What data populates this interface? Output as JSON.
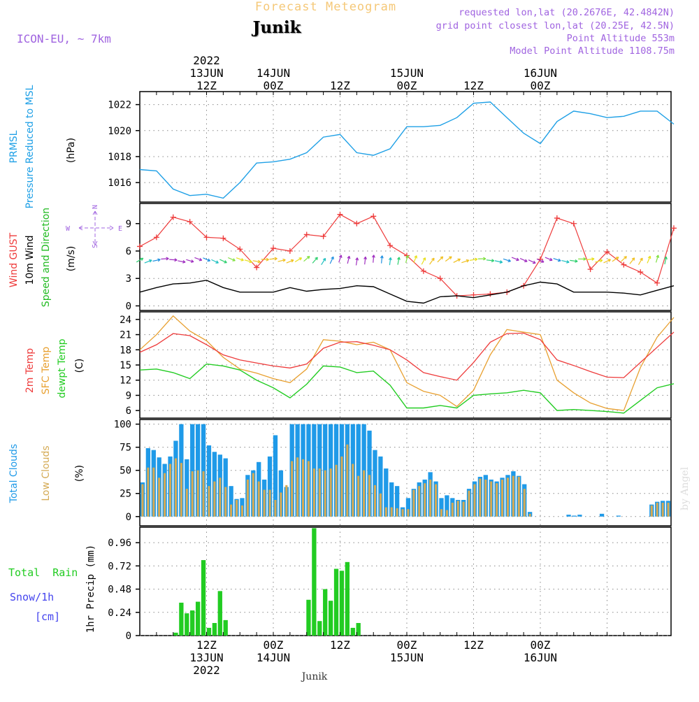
{
  "header": {
    "title": "Forecast Meteogram",
    "location": "Junik",
    "model": "ICON-EU, ~ 7km",
    "info_lines": [
      "requested lon,lat (20.2676E, 42.4842N)",
      "grid point closest lon,lat (20.25E, 42.5N)",
      "Point Altitude 553m",
      "Model Point Altitude 1108.75m"
    ],
    "watermark": "by Angel",
    "footer_location": "Junik"
  },
  "colors": {
    "pressure": "#1fa0e6",
    "gust": "#ee3b3b",
    "wind": "#000000",
    "dir": "#22bb22",
    "temp2m": "#ee3b3b",
    "sfc": "#e8a030",
    "dewpt": "#22cc22",
    "total_cloud": "#1f9ae8",
    "low_cloud": "#d4aa55",
    "rain": "#22cc22",
    "snow": "#4444ee",
    "title": "#f5c878",
    "info": "#a064e0"
  },
  "time_axis": {
    "top_labels": [
      {
        "lines": [
          "2022",
          "13JUN",
          "12Z"
        ],
        "h": 12
      },
      {
        "lines": [
          "14JUN",
          "00Z"
        ],
        "h": 24
      },
      {
        "lines": [
          "12Z"
        ],
        "h": 36
      },
      {
        "lines": [
          "15JUN",
          "00Z"
        ],
        "h": 48
      },
      {
        "lines": [
          "12Z"
        ],
        "h": 60
      },
      {
        "lines": [
          "16JUN",
          "00Z"
        ],
        "h": 72
      }
    ],
    "bottom_labels": [
      {
        "lines": [
          "12Z",
          "13JUN",
          "2022"
        ],
        "h": 12
      },
      {
        "lines": [
          "00Z",
          "14JUN"
        ],
        "h": 24
      },
      {
        "lines": [
          "12Z"
        ],
        "h": 36
      },
      {
        "lines": [
          "00Z",
          "15JUN"
        ],
        "h": 48
      },
      {
        "lines": [
          "12Z"
        ],
        "h": 60
      },
      {
        "lines": [
          "00Z",
          "16JUN"
        ],
        "h": 72
      }
    ]
  },
  "panels": {
    "pressure": {
      "labels": [
        "PRMSL",
        "Pressure Reduced to MSL"
      ],
      "unit": "(hPa)",
      "ticks": [
        "1016",
        "1018",
        "1020",
        "1022"
      ]
    },
    "wind": {
      "labels": [
        "Wind GUST",
        "10m Wind",
        "Speed and Direction"
      ],
      "unit": "(m/s)",
      "ticks": [
        "0",
        "3",
        "6",
        "9"
      ],
      "compass": {
        "n": "N",
        "s": "S",
        "w": "W",
        "e": "E"
      }
    },
    "temp": {
      "labels": [
        "2m Temp",
        "SFC Temp",
        "dewpt Temp"
      ],
      "unit": "(C)",
      "ticks": [
        "6",
        "9",
        "12",
        "15",
        "18",
        "21",
        "24"
      ]
    },
    "clouds": {
      "labels": [
        "Total Clouds",
        "Low Clouds"
      ],
      "unit": "(%)",
      "ticks": [
        "0",
        "25",
        "50",
        "75",
        "100"
      ]
    },
    "precip": {
      "labels": [
        "Total  Rain",
        "Snow/1h",
        "[cm]"
      ],
      "unit": "1hr Precip (mm)",
      "ticks": [
        "0",
        "0.24",
        "0.48",
        "0.72",
        "0.96"
      ]
    }
  },
  "chart_data": [
    {
      "type": "line",
      "title": "PRMSL Pressure Reduced to MSL",
      "ylabel": "(hPa)",
      "ylim": [
        1014.5,
        1023
      ],
      "x_hours": [
        0,
        3,
        6,
        9,
        12,
        15,
        18,
        21,
        24,
        27,
        30,
        33,
        36,
        39,
        42,
        45,
        48,
        51,
        54,
        57,
        60,
        63,
        66,
        69,
        72,
        75,
        78,
        81,
        84,
        87,
        90,
        93,
        96
      ],
      "series": [
        {
          "name": "PRMSL",
          "values": [
            1017.0,
            1016.9,
            1015.5,
            1015.0,
            1015.1,
            1014.8,
            1016.0,
            1017.5,
            1017.6,
            1017.8,
            1018.3,
            1019.5,
            1019.7,
            1018.3,
            1018.1,
            1018.6,
            1020.3,
            1020.3,
            1020.4,
            1021.0,
            1022.1,
            1022.2,
            1021.0,
            1019.8,
            1019.0,
            1020.7,
            1021.5,
            1021.3,
            1021.0,
            1021.1,
            1021.5,
            1021.5,
            1020.5
          ]
        }
      ],
      "grid": true
    },
    {
      "type": "line",
      "title": "Wind GUST / 10m Wind Speed and Direction",
      "ylabel": "(m/s)",
      "ylim": [
        -0.5,
        11.2
      ],
      "x_hours": [
        0,
        3,
        6,
        9,
        12,
        15,
        18,
        21,
        24,
        27,
        30,
        33,
        36,
        39,
        42,
        45,
        48,
        51,
        54,
        57,
        60,
        63,
        66,
        69,
        72,
        75,
        78,
        81,
        84,
        87,
        90,
        93,
        96
      ],
      "series": [
        {
          "name": "Wind GUST",
          "values": [
            6.5,
            7.5,
            9.7,
            9.2,
            7.5,
            7.4,
            6.2,
            4.2,
            6.3,
            6.0,
            7.8,
            7.6,
            10.0,
            9.0,
            9.8,
            6.6,
            5.5,
            3.8,
            3.0,
            1.1,
            1.2,
            1.3,
            1.5,
            2.2,
            5.1,
            9.6,
            9.0,
            4.0,
            5.9,
            4.5,
            3.7,
            2.5,
            8.5
          ]
        },
        {
          "name": "10m Wind",
          "values": [
            1.5,
            2.0,
            2.4,
            2.5,
            2.8,
            2.0,
            1.5,
            1.5,
            1.5,
            2.0,
            1.6,
            1.8,
            1.9,
            2.2,
            2.1,
            1.3,
            0.5,
            0.3,
            1.0,
            1.1,
            0.9,
            1.2,
            1.5,
            2.2,
            2.6,
            2.4,
            1.5,
            1.5,
            1.5,
            1.4,
            1.2,
            1.7,
            2.2
          ]
        }
      ],
      "grid": true
    },
    {
      "type": "line",
      "title": "2m Temp / SFC Temp / dewpt Temp",
      "ylabel": "(C)",
      "ylim": [
        4.5,
        25.5
      ],
      "x_hours": [
        0,
        3,
        6,
        9,
        12,
        15,
        18,
        21,
        24,
        27,
        30,
        33,
        36,
        39,
        42,
        45,
        48,
        51,
        54,
        57,
        60,
        63,
        66,
        69,
        72,
        75,
        78,
        81,
        84,
        87,
        90,
        93,
        96
      ],
      "series": [
        {
          "name": "2m Temp",
          "values": [
            17.5,
            19.0,
            21.2,
            20.8,
            19.0,
            17.0,
            16.0,
            15.4,
            14.8,
            14.4,
            15.2,
            18.3,
            19.5,
            19.6,
            18.9,
            18.0,
            16.0,
            13.5,
            12.7,
            12.0,
            15.5,
            19.5,
            21.2,
            21.3,
            20.0,
            16.0,
            14.9,
            13.7,
            12.6,
            12.5,
            15.5,
            18.5,
            21.5
          ]
        },
        {
          "name": "SFC Temp",
          "values": [
            18.0,
            21.0,
            24.7,
            21.7,
            19.8,
            16.5,
            14.2,
            13.4,
            12.3,
            11.5,
            14.2,
            20.0,
            19.7,
            19.0,
            19.5,
            18.0,
            11.5,
            9.8,
            9.0,
            6.8,
            10.0,
            17.0,
            22.0,
            21.5,
            21.0,
            12.0,
            9.5,
            7.5,
            6.4,
            6.0,
            14.5,
            20.5,
            24.4
          ]
        },
        {
          "name": "dewpt Temp",
          "values": [
            14.0,
            14.2,
            13.5,
            12.3,
            15.2,
            14.8,
            14.0,
            12.0,
            10.5,
            8.5,
            11.2,
            14.8,
            14.6,
            13.5,
            13.8,
            11.0,
            6.5,
            6.5,
            7.0,
            6.5,
            9.0,
            9.3,
            9.5,
            10.0,
            9.5,
            6.0,
            6.2,
            6.0,
            5.8,
            5.5,
            8.0,
            10.5,
            11.3
          ]
        }
      ],
      "grid": true
    },
    {
      "type": "bar",
      "title": "Total Clouds / Low Clouds",
      "ylabel": "(%)",
      "ylim": [
        -10,
        105
      ],
      "x_hours": [
        0,
        1,
        2,
        3,
        4,
        5,
        6,
        7,
        8,
        9,
        10,
        11,
        12,
        13,
        14,
        15,
        16,
        17,
        18,
        19,
        20,
        21,
        22,
        23,
        24,
        25,
        26,
        27,
        28,
        29,
        30,
        31,
        32,
        33,
        34,
        35,
        36,
        37,
        38,
        39,
        40,
        41,
        42,
        43,
        44,
        45,
        46,
        47,
        48,
        49,
        50,
        51,
        52,
        53,
        54,
        55,
        56,
        57,
        58,
        59,
        60,
        61,
        62,
        63,
        64,
        65,
        66,
        67,
        68,
        69,
        70,
        71,
        72,
        73,
        74,
        75,
        76,
        77,
        78,
        79,
        80,
        81,
        82,
        83,
        84,
        85,
        86,
        87,
        88,
        89,
        90,
        91,
        92,
        93,
        94,
        95
      ],
      "series": [
        {
          "name": "Total Clouds",
          "values": [
            37,
            74,
            72,
            64,
            57,
            65,
            82,
            100,
            62,
            100,
            100,
            100,
            77,
            70,
            67,
            63,
            33,
            19,
            20,
            45,
            50,
            59,
            40,
            65,
            88,
            50,
            32,
            100,
            100,
            100,
            100,
            100,
            100,
            100,
            100,
            100,
            100,
            100,
            100,
            100,
            100,
            93,
            72,
            65,
            52,
            37,
            33,
            10,
            20,
            30,
            37,
            40,
            48,
            38,
            20,
            23,
            20,
            18,
            18,
            30,
            38,
            43,
            45,
            40,
            38,
            42,
            45,
            49,
            44,
            35,
            5,
            0,
            0,
            0,
            0,
            0,
            0,
            2,
            1,
            2,
            0,
            0,
            0,
            3,
            0,
            0,
            1,
            0,
            0,
            0,
            0,
            0,
            13,
            16,
            17,
            17
          ]
        },
        {
          "name": "Low Clouds",
          "values": [
            35,
            53,
            53,
            42,
            47,
            57,
            63,
            58,
            30,
            49,
            50,
            49,
            33,
            38,
            42,
            32,
            13,
            18,
            12,
            40,
            47,
            38,
            29,
            29,
            18,
            26,
            34,
            60,
            64,
            62,
            60,
            52,
            52,
            50,
            52,
            56,
            65,
            78,
            57,
            44,
            50,
            45,
            34,
            25,
            10,
            10,
            9,
            8,
            8,
            29,
            33,
            36,
            40,
            35,
            8,
            7,
            15,
            17,
            16,
            28,
            35,
            41,
            40,
            38,
            36,
            40,
            42,
            44,
            43,
            30,
            3,
            0,
            0,
            0,
            0,
            0,
            0,
            0,
            0,
            0,
            0,
            0,
            0,
            0,
            0,
            0,
            0,
            0,
            0,
            0,
            0,
            0,
            12,
            15,
            15,
            15
          ]
        }
      ],
      "grid": true
    },
    {
      "type": "bar",
      "title": "1hr Precip",
      "ylabel": "1hr Precip (mm)",
      "ylim": [
        0,
        1.12
      ],
      "x_hours": [
        0,
        1,
        2,
        3,
        4,
        5,
        6,
        7,
        8,
        9,
        10,
        11,
        12,
        13,
        14,
        15,
        16,
        17,
        18,
        19,
        20,
        21,
        22,
        23,
        24,
        25,
        26,
        27,
        28,
        29,
        30,
        31,
        32,
        33,
        34,
        35,
        36,
        37,
        38,
        39,
        40,
        41,
        42,
        43,
        44,
        45,
        46,
        47,
        48,
        49,
        50,
        51,
        52,
        53,
        54,
        55,
        56,
        57,
        58,
        59,
        60,
        61,
        62,
        63,
        64,
        65,
        66,
        67,
        68,
        69,
        70,
        71,
        72,
        73,
        74,
        75,
        76,
        77,
        78,
        79,
        80,
        81,
        82,
        83,
        84,
        85,
        86,
        87,
        88,
        89,
        90,
        91,
        92,
        93,
        94,
        95
      ],
      "series": [
        {
          "name": "Total Rain",
          "values": [
            0,
            0,
            0,
            0,
            0,
            0,
            0.03,
            0.34,
            0.23,
            0.26,
            0.35,
            0.78,
            0.08,
            0.13,
            0.46,
            0.16,
            0,
            0,
            0,
            0,
            0,
            0,
            0,
            0,
            0,
            0,
            0,
            0,
            0,
            0,
            0.37,
            1.11,
            0.15,
            0.48,
            0.36,
            0.69,
            0.67,
            0.76,
            0.08,
            0.13,
            0,
            0,
            0,
            0,
            0,
            0,
            0,
            0,
            0,
            0,
            0,
            0,
            0,
            0,
            0,
            0,
            0,
            0,
            0,
            0,
            0,
            0,
            0,
            0,
            0,
            0,
            0,
            0,
            0,
            0,
            0,
            0,
            0,
            0,
            0,
            0,
            0,
            0,
            0,
            0,
            0,
            0,
            0,
            0,
            0,
            0,
            0,
            0,
            0,
            0,
            0,
            0,
            0,
            0,
            0,
            0
          ]
        },
        {
          "name": "Snow/1h",
          "values": [
            0,
            0,
            0,
            0,
            0,
            0,
            0,
            0,
            0,
            0,
            0,
            0,
            0,
            0,
            0,
            0,
            0,
            0,
            0,
            0,
            0,
            0,
            0,
            0,
            0,
            0,
            0,
            0,
            0,
            0,
            0,
            0,
            0,
            0,
            0,
            0,
            0,
            0,
            0,
            0,
            0,
            0,
            0,
            0,
            0,
            0,
            0,
            0,
            0,
            0,
            0,
            0,
            0,
            0,
            0,
            0,
            0,
            0,
            0,
            0,
            0,
            0,
            0,
            0,
            0,
            0,
            0,
            0,
            0,
            0,
            0,
            0,
            0,
            0,
            0,
            0,
            0,
            0,
            0,
            0,
            0,
            0,
            0,
            0,
            0,
            0,
            0,
            0,
            0,
            0,
            0,
            0,
            0,
            0,
            0,
            0
          ]
        }
      ],
      "grid": true
    }
  ]
}
